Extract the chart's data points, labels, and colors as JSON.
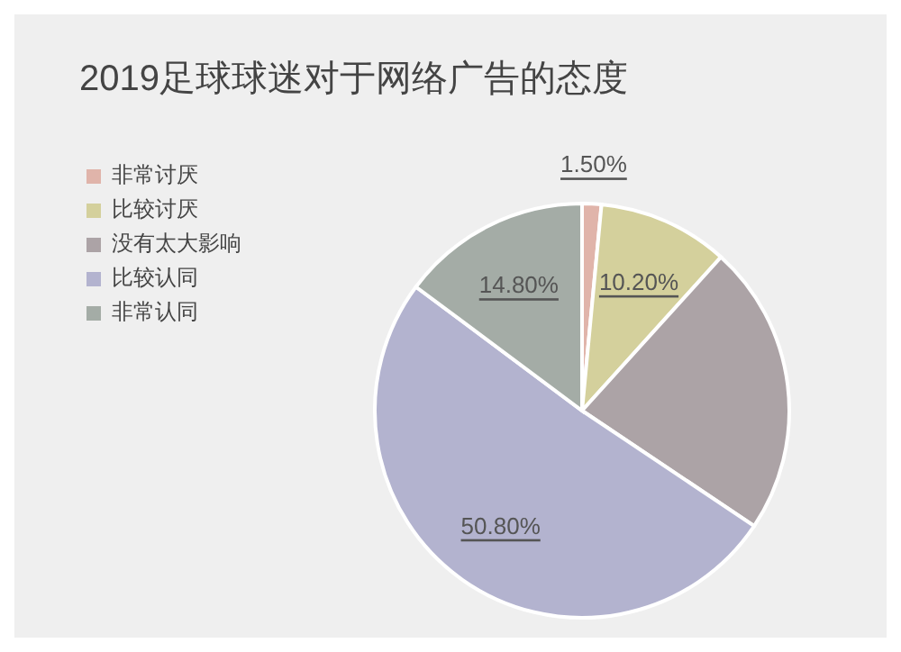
{
  "chart_data": {
    "type": "pie",
    "title": "2019足球球迷对于网络广告的态度",
    "categories": [
      "非常讨厌",
      "比较讨厌",
      "没有太大影响",
      "比较认同",
      "非常认同"
    ],
    "values": [
      1.5,
      10.2,
      22.7,
      50.8,
      14.8
    ],
    "colors": [
      "#e0b4aa",
      "#d4d09c",
      "#aca3a6",
      "#b3b3cf",
      "#a4aca6"
    ],
    "value_labels": [
      "1.50%",
      "10.20%",
      null,
      "50.80%",
      "14.80%"
    ],
    "legend": "left"
  }
}
